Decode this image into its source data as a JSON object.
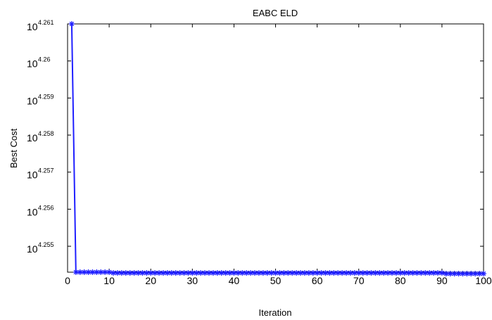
{
  "chart_data": {
    "type": "line",
    "title": "EABC ELD",
    "xlabel": "Iteration",
    "ylabel": "Best Cost",
    "xlim": [
      0,
      100
    ],
    "ylim_log10": [
      4.2543,
      4.261
    ],
    "yscale": "log",
    "x_ticks": [
      0,
      10,
      20,
      30,
      40,
      50,
      60,
      70,
      80,
      90,
      100
    ],
    "x_tick_labels": [
      "0",
      "10",
      "20",
      "30",
      "40",
      "50",
      "60",
      "70",
      "80",
      "90",
      "100"
    ],
    "y_ticks_log10": [
      4.255,
      4.256,
      4.257,
      4.258,
      4.259,
      4.26,
      4.261
    ],
    "y_tick_base": "10",
    "y_tick_exponents": [
      "4.255",
      "4.256",
      "4.257",
      "4.258",
      "4.259",
      "4.26",
      "4.261"
    ],
    "grid": false,
    "legend": "none",
    "marker": "*",
    "line_color": "#1f1fff",
    "series": [
      {
        "x": [
          1,
          2,
          3,
          4,
          5,
          6,
          7,
          8,
          9,
          10,
          11,
          12,
          13,
          14,
          15,
          16,
          17,
          18,
          19,
          20,
          21,
          22,
          23,
          24,
          25,
          26,
          27,
          28,
          29,
          30,
          31,
          32,
          33,
          34,
          35,
          36,
          37,
          38,
          39,
          40,
          41,
          42,
          43,
          44,
          45,
          46,
          47,
          48,
          49,
          50,
          51,
          52,
          53,
          54,
          55,
          56,
          57,
          58,
          59,
          60,
          61,
          62,
          63,
          64,
          65,
          66,
          67,
          68,
          69,
          70,
          71,
          72,
          73,
          74,
          75,
          76,
          77,
          78,
          79,
          80,
          81,
          82,
          83,
          84,
          85,
          86,
          87,
          88,
          89,
          90,
          91,
          92,
          93,
          94,
          95,
          96,
          97,
          98,
          99,
          100
        ],
        "y_log10": [
          4.261,
          4.2543,
          4.2543,
          4.2543,
          4.2543,
          4.2543,
          4.2543,
          4.2543,
          4.2543,
          4.2543,
          4.25428,
          4.25428,
          4.25428,
          4.25428,
          4.25428,
          4.25428,
          4.25428,
          4.25428,
          4.25428,
          4.25428,
          4.25428,
          4.25428,
          4.25428,
          4.25428,
          4.25428,
          4.25428,
          4.25428,
          4.25428,
          4.25428,
          4.25428,
          4.25428,
          4.25428,
          4.25428,
          4.25428,
          4.25428,
          4.25428,
          4.25428,
          4.25428,
          4.25428,
          4.25428,
          4.25428,
          4.25428,
          4.25428,
          4.25428,
          4.25428,
          4.25428,
          4.25428,
          4.25428,
          4.25428,
          4.25428,
          4.25428,
          4.25428,
          4.25428,
          4.25428,
          4.25428,
          4.25428,
          4.25428,
          4.25428,
          4.25428,
          4.25428,
          4.25428,
          4.25428,
          4.25428,
          4.25428,
          4.25428,
          4.25428,
          4.25428,
          4.25428,
          4.25428,
          4.25428,
          4.25428,
          4.25428,
          4.25428,
          4.25428,
          4.25428,
          4.25428,
          4.25428,
          4.25428,
          4.25428,
          4.25428,
          4.25428,
          4.25428,
          4.25428,
          4.25428,
          4.25428,
          4.25428,
          4.25428,
          4.25428,
          4.25428,
          4.25428,
          4.25426,
          4.25426,
          4.25426,
          4.25426,
          4.25426,
          4.25426,
          4.25426,
          4.25426,
          4.25426,
          4.25426
        ]
      }
    ]
  }
}
